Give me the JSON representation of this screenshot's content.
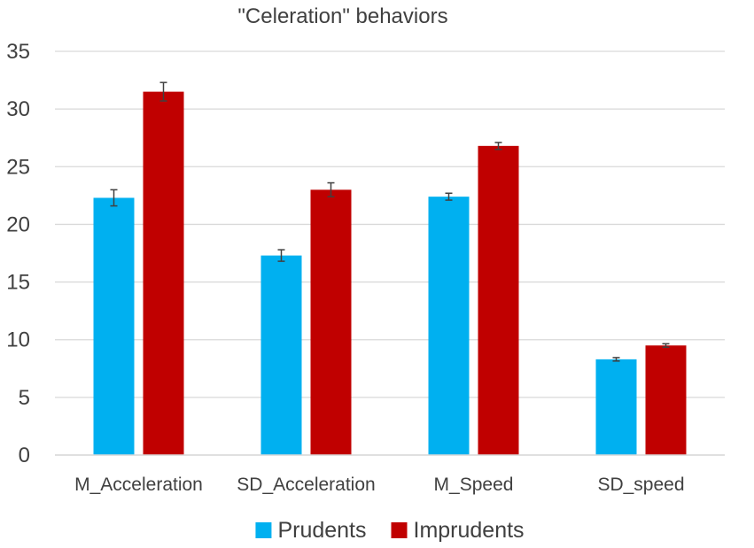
{
  "chart_data": {
    "type": "bar",
    "title": "\"Celeration\" behaviors",
    "xlabel": "",
    "ylabel": "",
    "ylim": [
      0,
      35
    ],
    "yticks": [
      0,
      5,
      10,
      15,
      20,
      25,
      30,
      35
    ],
    "grid": true,
    "legend_position": "bottom",
    "categories": [
      "M_Acceleration",
      "SD_Acceleration",
      "M_Speed",
      "SD_speed"
    ],
    "series": [
      {
        "name": "Prudents",
        "color": "#00B0F0",
        "values": [
          22.3,
          17.3,
          22.4,
          8.3
        ],
        "errors": [
          0.7,
          0.5,
          0.3,
          0.15
        ]
      },
      {
        "name": "Imprudents",
        "color": "#C00000",
        "values": [
          31.5,
          23.0,
          26.8,
          9.5
        ],
        "errors": [
          0.8,
          0.6,
          0.3,
          0.15
        ]
      }
    ],
    "colors": {
      "text": "#404040",
      "grid": "#D9D9D9",
      "axis": "#D9D9D9",
      "error_bar": "#404040"
    }
  }
}
